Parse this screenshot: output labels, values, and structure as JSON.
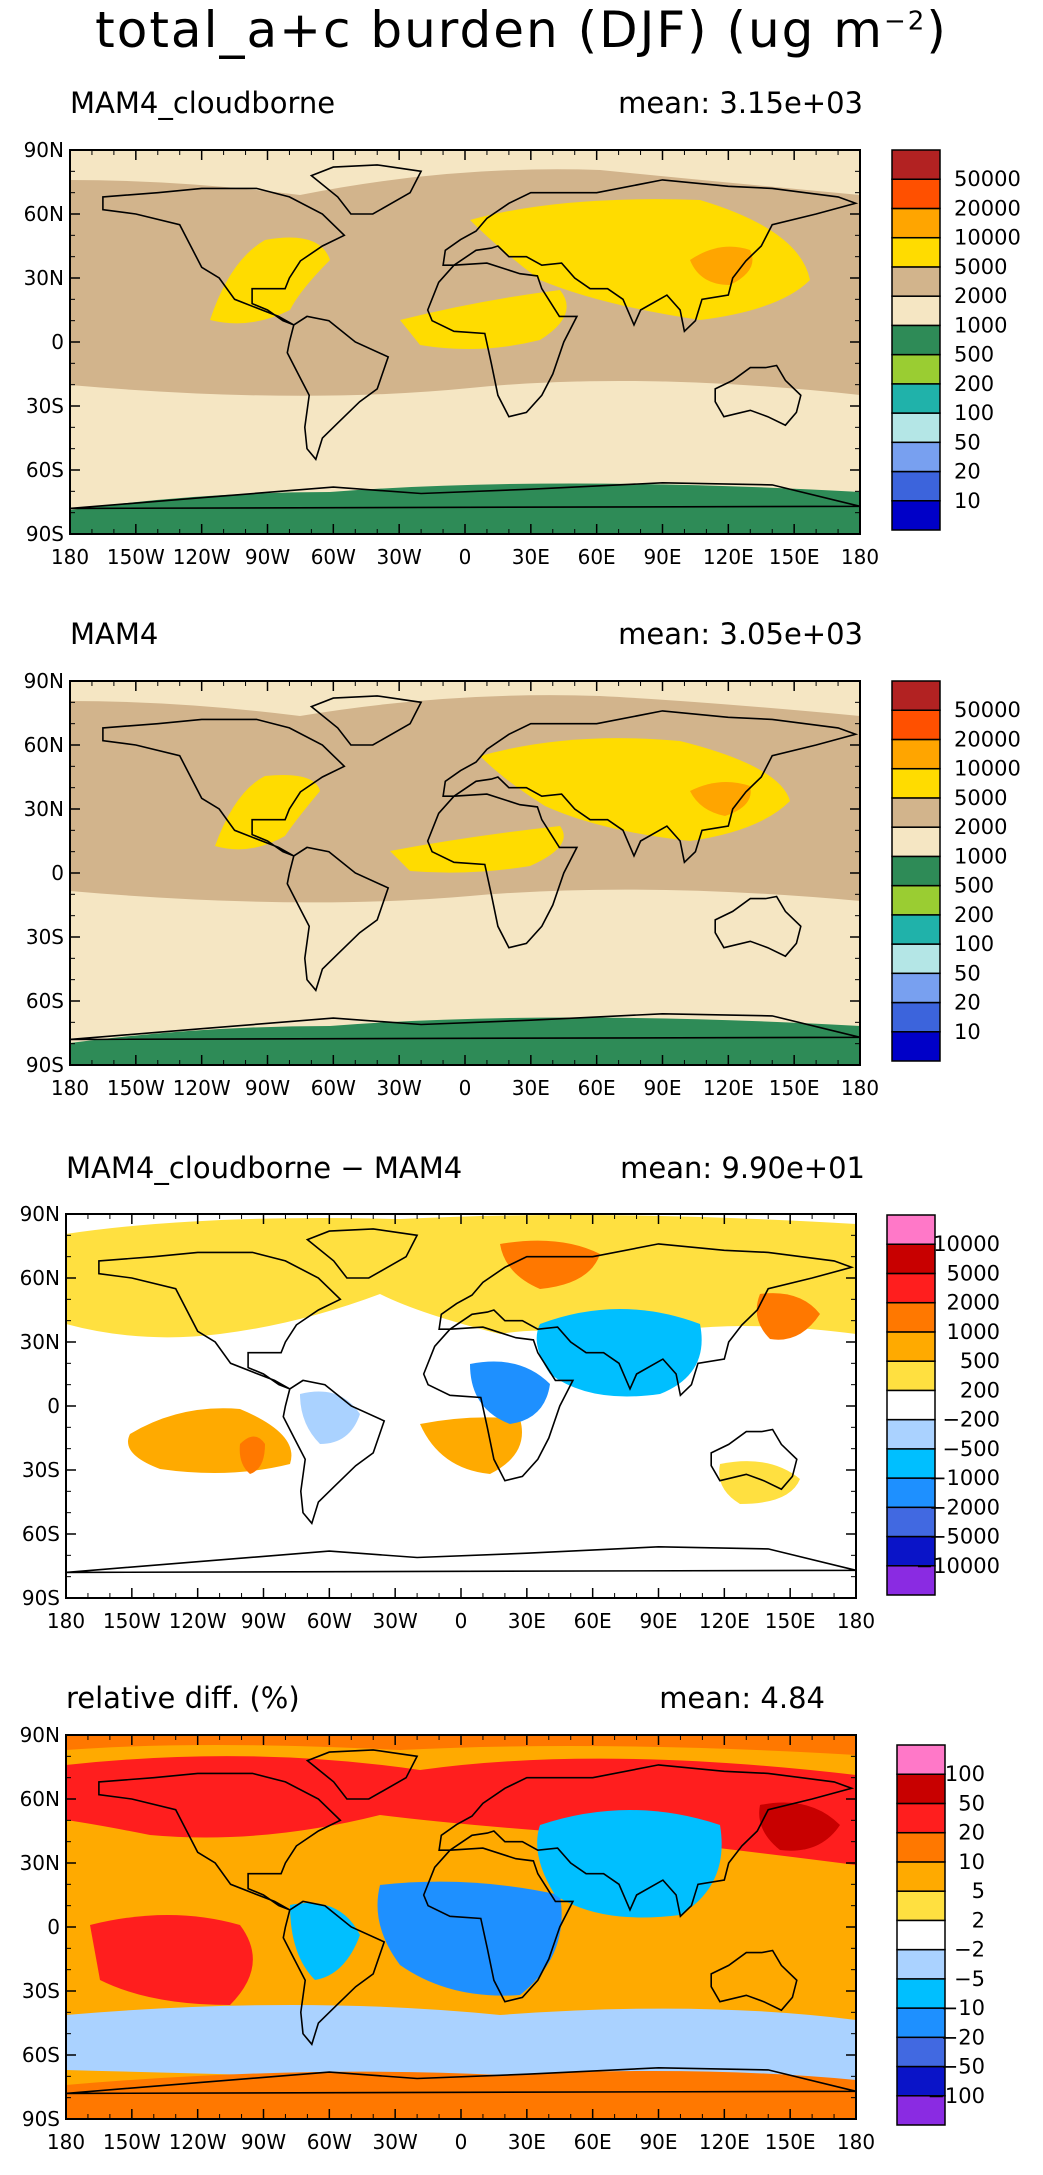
{
  "title": {
    "main": "total_a+c burden (DJF) (ug m",
    "exponent": "−2",
    "close": ")"
  },
  "lon_ticks": [
    "180",
    "150W",
    "120W",
    "90W",
    "60W",
    "30W",
    "0",
    "30E",
    "60E",
    "90E",
    "120E",
    "150E",
    "180"
  ],
  "lat_ticks": [
    "90N",
    "60N",
    "30N",
    "0",
    "30S",
    "60S",
    "90S"
  ],
  "colors": {
    "coastline": "#000000",
    "burden_scale": [
      "#0000c8",
      "#3c64dc",
      "#78a0f0",
      "#b4e6e6",
      "#20b2aa",
      "#9acd32",
      "#2e8b57",
      "#f5e6c3",
      "#d2b48c",
      "#ffdc00",
      "#ffa500",
      "#ff5000",
      "#b22222"
    ],
    "diff_scale": [
      "#8a2be2",
      "#0a14c8",
      "#4169e1",
      "#1e90ff",
      "#00bfff",
      "#aad2ff",
      "#ffffff",
      "#ffe040",
      "#ffaa00",
      "#ff7800",
      "#ff1e1e",
      "#c80000",
      "#ff78c8"
    ]
  },
  "panels": [
    {
      "label": "MAM4_cloudborne",
      "mean": "mean: 3.15e+03",
      "colorbar": [
        "10",
        "20",
        "50",
        "100",
        "200",
        "500",
        "1000",
        "2000",
        "5000",
        "10000",
        "20000",
        "50000"
      ]
    },
    {
      "label": "MAM4",
      "mean": "mean: 3.05e+03",
      "colorbar": [
        "10",
        "20",
        "50",
        "100",
        "200",
        "500",
        "1000",
        "2000",
        "5000",
        "10000",
        "20000",
        "50000"
      ]
    },
    {
      "label": "MAM4_cloudborne − MAM4",
      "mean": "mean: 9.90e+01",
      "colorbar": [
        "−10000",
        "−5000",
        "−2000",
        "−1000",
        "−500",
        "−200",
        "200",
        "500",
        "1000",
        "2000",
        "5000",
        "10000"
      ]
    },
    {
      "label": "relative diff. (%)",
      "mean": "mean:   4.84",
      "colorbar": [
        "−100",
        "−50",
        "−20",
        "−10",
        "−5",
        "−2",
        "2",
        "5",
        "10",
        "20",
        "50",
        "100"
      ]
    }
  ]
}
